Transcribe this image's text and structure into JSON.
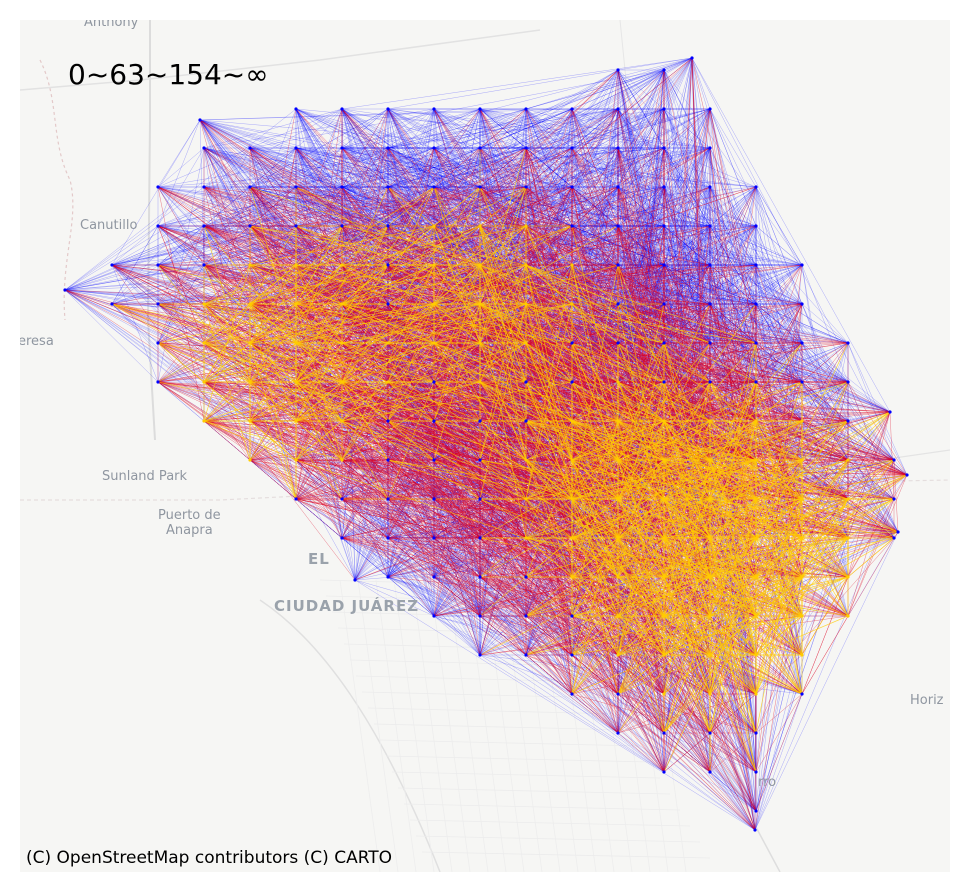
{
  "legend_text": "0~63~154~∞",
  "attribution": "(C) OpenStreetMap contributors (C) CARTO",
  "colors": {
    "low": "#0000ff",
    "mid": "#dd0022",
    "high": "#ffcc00",
    "background": "#f6f6f4"
  },
  "places": [
    {
      "id": "anthony",
      "label": "Anthony"
    },
    {
      "id": "canutillo",
      "label": "Canutillo"
    },
    {
      "id": "teresa",
      "label": "eresa"
    },
    {
      "id": "sunland-park",
      "label": "Sunland Park"
    },
    {
      "id": "puerto-de-anapra-1",
      "label": "Puerto de"
    },
    {
      "id": "puerto-de-anapra-2",
      "label": "Anapra"
    },
    {
      "id": "el-paso",
      "label": "EL"
    },
    {
      "id": "ciudad-juarez",
      "label": "CIUDAD JUÁREZ"
    },
    {
      "id": "horizon",
      "label": "Horiz"
    },
    {
      "id": "zaragoza",
      "label": "rro"
    }
  ]
}
